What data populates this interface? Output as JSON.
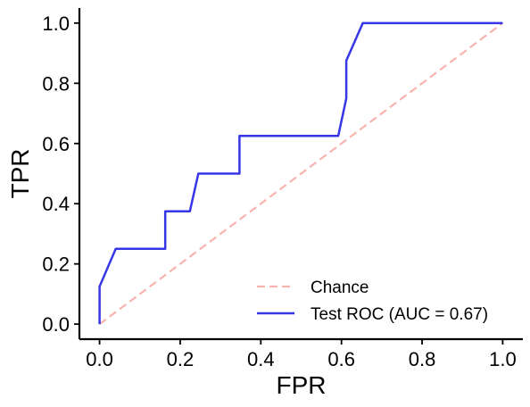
{
  "chart_data": {
    "type": "line",
    "title": "",
    "xlabel": "FPR",
    "ylabel": "TPR",
    "xlim": [
      -0.05,
      1.05
    ],
    "ylim": [
      -0.05,
      1.05
    ],
    "xticks": [
      0.0,
      0.2,
      0.4,
      0.6,
      0.8,
      1.0
    ],
    "xtick_labels": [
      "0.0",
      "0.2",
      "0.4",
      "0.6",
      "0.8",
      "1.0"
    ],
    "yticks": [
      0.0,
      0.2,
      0.4,
      0.6,
      0.8,
      1.0
    ],
    "ytick_labels": [
      "0.0",
      "0.2",
      "0.4",
      "0.6",
      "0.8",
      "1.0"
    ],
    "grid": false,
    "legend_position": "lower-right",
    "series": [
      {
        "name": "Chance",
        "style": "dashed",
        "color": "#f9b3ae",
        "x": [
          0.0,
          1.0
        ],
        "y": [
          0.0,
          1.0
        ]
      },
      {
        "name": "Test ROC (AUC = 0.67)",
        "style": "solid",
        "color": "#3636e6",
        "x": [
          0.0,
          0.0,
          0.04,
          0.163,
          0.163,
          0.224,
          0.245,
          0.347,
          0.347,
          0.592,
          0.612,
          0.612,
          0.653,
          1.0
        ],
        "y": [
          0.0,
          0.125,
          0.25,
          0.25,
          0.375,
          0.375,
          0.5,
          0.5,
          0.625,
          0.625,
          0.75,
          0.875,
          1.0,
          1.0
        ]
      }
    ]
  }
}
